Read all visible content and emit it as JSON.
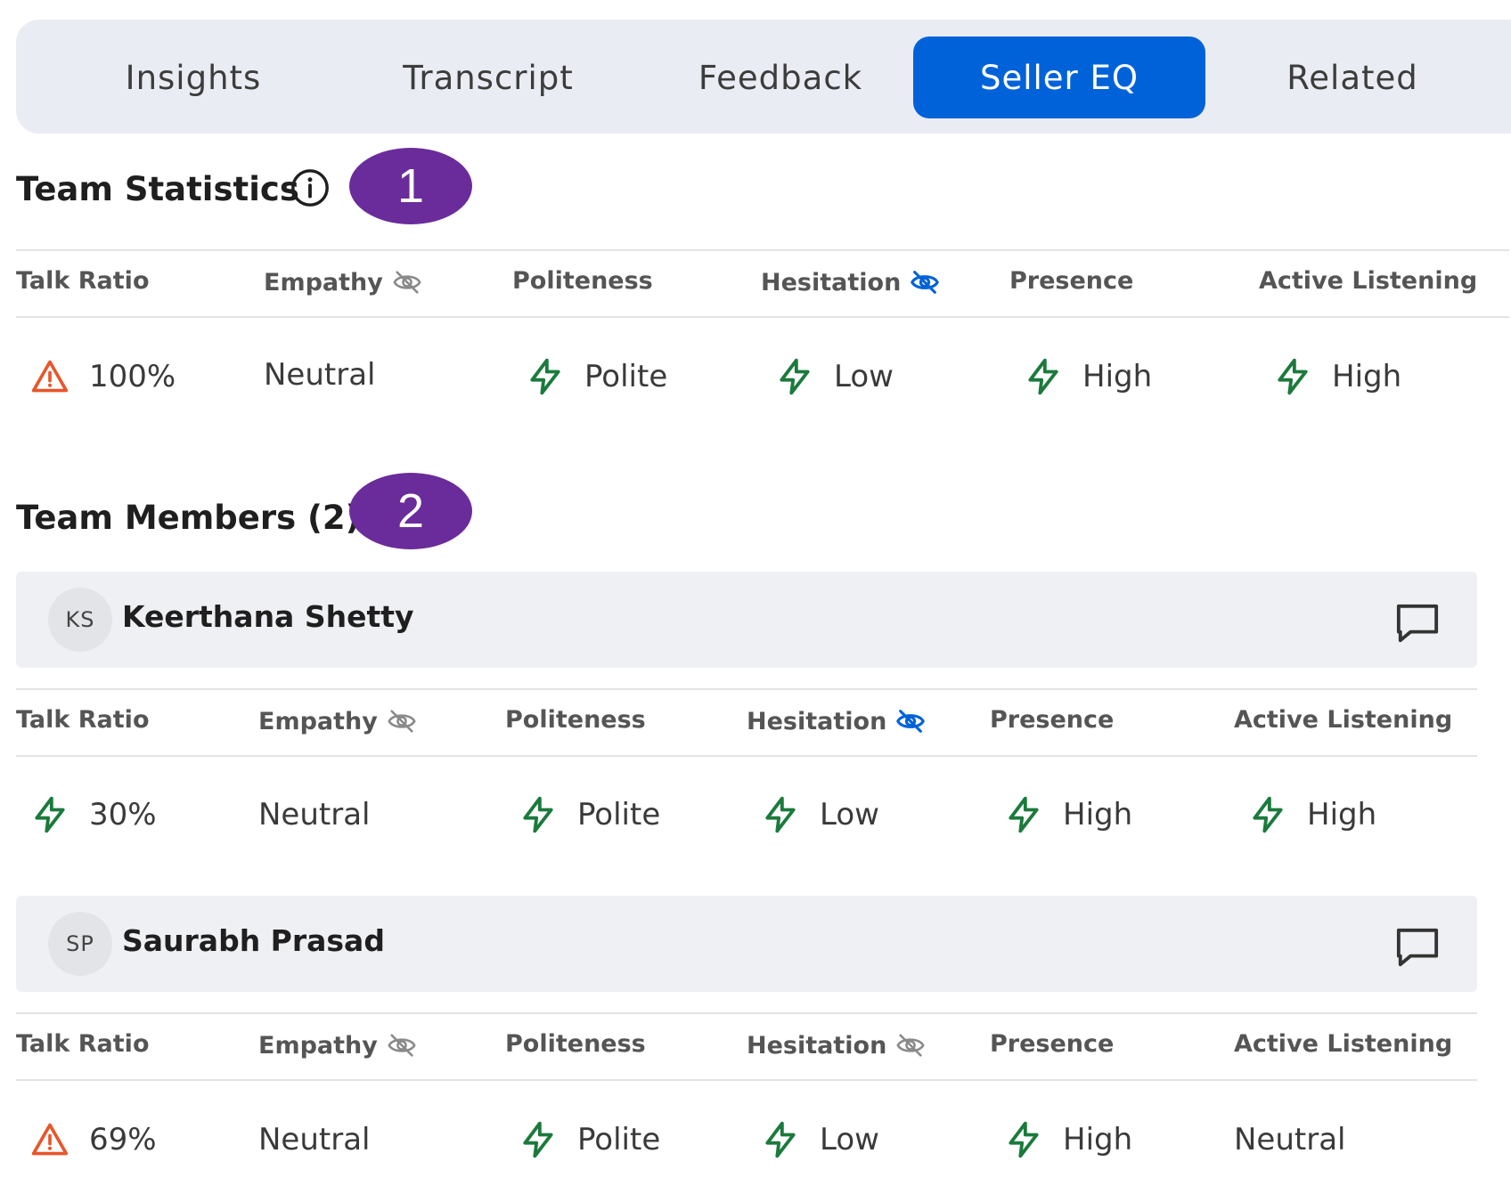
{
  "tabs": [
    {
      "label": "Insights"
    },
    {
      "label": "Transcript"
    },
    {
      "label": "Feedback"
    },
    {
      "label": "Seller EQ",
      "active": true
    },
    {
      "label": "Related"
    }
  ],
  "colors": {
    "accent": "#0062d9",
    "badge": "#6a2c9a",
    "positive": "#1b7a3c",
    "warning": "#e8562a",
    "muted_hidden": "#8a8a8a",
    "blue_hidden": "#0062d9"
  },
  "headers": {
    "talk_ratio": "Talk Ratio",
    "empathy": "Empathy",
    "politeness": "Politeness",
    "hesitation": "Hesitation",
    "presence": "Presence",
    "active_listening": "Active Listening"
  },
  "team_statistics": {
    "title": "Team Statistics",
    "title_icon": "info-icon",
    "badge": "1",
    "empathy_icon": "eye-slash-icon (grey)",
    "hesitation_icon": "eye-slash-icon (blue)",
    "values": {
      "talk_ratio": {
        "text": "100%",
        "icon": "warning-icon"
      },
      "empathy": {
        "text": "Neutral",
        "icon": null
      },
      "politeness": {
        "text": "Polite",
        "icon": "bolt-icon"
      },
      "hesitation": {
        "text": "Low",
        "icon": "bolt-icon"
      },
      "presence": {
        "text": "High",
        "icon": "bolt-icon"
      },
      "active_listening": {
        "text": "High",
        "icon": "bolt-icon"
      }
    }
  },
  "team_members": {
    "title": "Team Members (2)",
    "badge": "2",
    "members": [
      {
        "initials": "KS",
        "name": "Keerthana Shetty",
        "action_icon": "chat-icon",
        "empathy_icon": "eye-slash-icon (grey)",
        "hesitation_icon": "eye-slash-icon (blue)",
        "values": {
          "talk_ratio": {
            "text": "30%",
            "icon": "bolt-icon"
          },
          "empathy": {
            "text": "Neutral",
            "icon": null
          },
          "politeness": {
            "text": "Polite",
            "icon": "bolt-icon"
          },
          "hesitation": {
            "text": "Low",
            "icon": "bolt-icon"
          },
          "presence": {
            "text": "High",
            "icon": "bolt-icon"
          },
          "active_listening": {
            "text": "High",
            "icon": "bolt-icon"
          }
        }
      },
      {
        "initials": "SP",
        "name": "Saurabh Prasad",
        "action_icon": "chat-icon",
        "empathy_icon": "eye-slash-icon (grey)",
        "hesitation_icon": "eye-slash-icon (grey)",
        "values": {
          "talk_ratio": {
            "text": "69%",
            "icon": "warning-icon"
          },
          "empathy": {
            "text": "Neutral",
            "icon": null
          },
          "politeness": {
            "text": "Polite",
            "icon": "bolt-icon"
          },
          "hesitation": {
            "text": "Low",
            "icon": "bolt-icon"
          },
          "presence": {
            "text": "High",
            "icon": "bolt-icon"
          },
          "active_listening": {
            "text": "Neutral",
            "icon": null
          }
        }
      }
    ]
  }
}
